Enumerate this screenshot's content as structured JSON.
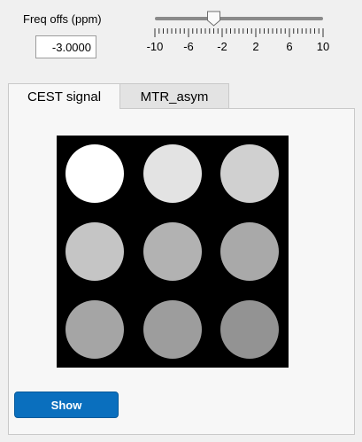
{
  "controls": {
    "freq_label": "Freq offs (ppm)",
    "freq_value": "-3.0000"
  },
  "slider": {
    "min": -10,
    "max": 10,
    "value": -3,
    "tick_labels": [
      "-10",
      "-6",
      "-2",
      "2",
      "6",
      "10"
    ]
  },
  "tabs": [
    {
      "label": "CEST signal",
      "active": true
    },
    {
      "label": "MTR_asym",
      "active": false
    }
  ],
  "phantom": {
    "vial_colors": [
      "#ffffff",
      "#e3e3e3",
      "#d0d0d0",
      "#c5c5c5",
      "#b2b2b2",
      "#a9a9a9",
      "#a5a5a5",
      "#9d9d9d",
      "#939393"
    ]
  },
  "buttons": {
    "show_label": "Show"
  }
}
